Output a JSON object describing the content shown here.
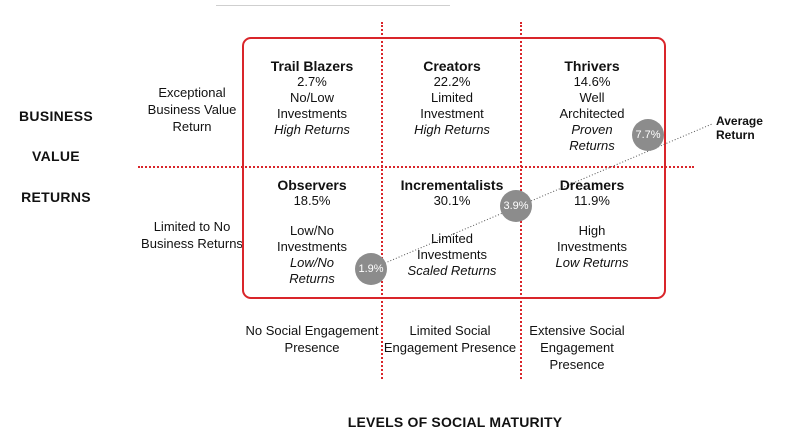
{
  "y_axis_words": [
    "BUSINESS",
    "VALUE",
    "RETURNS"
  ],
  "row_labels": {
    "top": "Exceptional Business Value Return",
    "bottom": "Limited to No Business Returns"
  },
  "cells": {
    "trail_blazers": {
      "name": "Trail Blazers",
      "pct": "2.7%",
      "desc": "No/Low Investments",
      "ret": "High Returns"
    },
    "creators": {
      "name": "Creators",
      "pct": "22.2%",
      "desc": "Limited Investment",
      "ret": "High Returns"
    },
    "thrivers": {
      "name": "Thrivers",
      "pct": "14.6%",
      "desc": "Well Architected",
      "ret": "Proven Returns"
    },
    "observers": {
      "name": "Observers",
      "pct": "18.5%",
      "desc": "Low/No Investments",
      "ret": "Low/No Returns"
    },
    "incrementalists": {
      "name": "Incrementalists",
      "pct": "30.1%",
      "desc": "Limited Investments",
      "ret": "Scaled Returns"
    },
    "dreamers": {
      "name": "Dreamers",
      "pct": "11.9%",
      "desc": "High Investments",
      "ret": "Low Returns"
    }
  },
  "average_markers": [
    "1.9%",
    "3.9%",
    "7.7%"
  ],
  "average_label": "Average Return",
  "column_labels": [
    "No Social Engagement Presence",
    "Limited Social Engagement Presence",
    "Extensive Social Engagement Presence"
  ],
  "x_axis_title": "LEVELS OF SOCIAL MATURITY",
  "colors": {
    "accent_red": "#d9252a",
    "marker_gray": "#8c8c8c"
  }
}
